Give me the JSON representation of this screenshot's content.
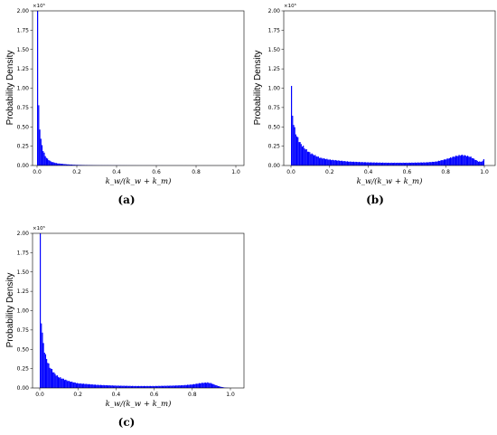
{
  "chart_data": [
    {
      "id": "a",
      "type": "bar",
      "caption": "(a)",
      "ylabel": "Probability Density",
      "xlabel": "k_w/(k_w + k_m)",
      "y_multiplier": "×10⁵",
      "xlim": [
        0,
        1
      ],
      "ylim": [
        0,
        2.0
      ],
      "xticks": [
        "0.0",
        "0.2",
        "0.4",
        "0.6",
        "0.8",
        "1.0"
      ],
      "yticks": [
        "0.00",
        "0.25",
        "0.50",
        "0.75",
        "1.00",
        "1.25",
        "1.50",
        "1.75",
        "2.00"
      ],
      "bar_color": "#0000ff",
      "profile_x": [
        0.0,
        0.003,
        0.006,
        0.01,
        0.015,
        0.02,
        0.03,
        0.04,
        0.05,
        0.07,
        0.1,
        0.15,
        0.2,
        0.3,
        0.5,
        0.7,
        1.0
      ],
      "profile_y": [
        2.0,
        1.45,
        0.88,
        0.65,
        0.45,
        0.32,
        0.2,
        0.13,
        0.09,
        0.05,
        0.028,
        0.015,
        0.008,
        0.003,
        0.001,
        0.0005,
        0.0003
      ]
    },
    {
      "id": "b",
      "type": "bar",
      "caption": "(b)",
      "ylabel": "Probability Density",
      "xlabel": "k_w/(k_w + k_m)",
      "y_multiplier": "×10⁵",
      "xlim": [
        0,
        1
      ],
      "ylim": [
        0,
        2.0
      ],
      "xticks": [
        "0.0",
        "0.2",
        "0.4",
        "0.6",
        "0.8",
        "1.0"
      ],
      "yticks": [
        "0.00",
        "0.25",
        "0.50",
        "0.75",
        "1.00",
        "1.25",
        "1.50",
        "1.75",
        "2.00"
      ],
      "bar_color": "#0000ff",
      "profile_x": [
        0.0,
        0.003,
        0.006,
        0.01,
        0.02,
        0.03,
        0.05,
        0.08,
        0.1,
        0.15,
        0.2,
        0.3,
        0.4,
        0.5,
        0.6,
        0.7,
        0.75,
        0.8,
        0.85,
        0.88,
        0.9,
        0.93,
        0.95,
        0.97,
        0.99,
        1.0
      ],
      "profile_y": [
        0.98,
        0.86,
        0.72,
        0.6,
        0.46,
        0.38,
        0.28,
        0.2,
        0.16,
        0.1,
        0.075,
        0.05,
        0.04,
        0.035,
        0.035,
        0.04,
        0.05,
        0.08,
        0.12,
        0.135,
        0.13,
        0.11,
        0.08,
        0.05,
        0.05,
        0.1
      ]
    },
    {
      "id": "c",
      "type": "bar",
      "caption": "(c)",
      "ylabel": "Probability Density",
      "xlabel": "k_w/(k_w + k_m)",
      "y_multiplier": "×10⁵",
      "xlim": [
        0,
        1
      ],
      "ylim": [
        0,
        2.0
      ],
      "xticks": [
        "0.0",
        "0.2",
        "0.4",
        "0.6",
        "0.8",
        "1.0"
      ],
      "yticks": [
        "0.00",
        "0.25",
        "0.50",
        "0.75",
        "1.00",
        "1.25",
        "1.50",
        "1.75",
        "2.00"
      ],
      "bar_color": "#0000ff",
      "profile_x": [
        0.0,
        0.003,
        0.006,
        0.01,
        0.02,
        0.03,
        0.05,
        0.08,
        0.1,
        0.15,
        0.2,
        0.3,
        0.4,
        0.5,
        0.6,
        0.7,
        0.75,
        0.8,
        0.85,
        0.88,
        0.9,
        0.93,
        0.95,
        0.97,
        1.0
      ],
      "profile_y": [
        2.0,
        1.5,
        1.0,
        0.8,
        0.55,
        0.42,
        0.28,
        0.18,
        0.14,
        0.09,
        0.06,
        0.04,
        0.03,
        0.025,
        0.025,
        0.03,
        0.035,
        0.045,
        0.065,
        0.07,
        0.06,
        0.03,
        0.015,
        0.005,
        0.0
      ]
    }
  ]
}
